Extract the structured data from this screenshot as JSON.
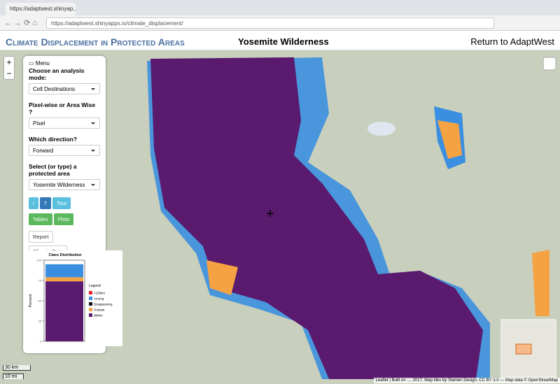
{
  "browser": {
    "tab_title": "https://adaptwest.shinyap...",
    "url": "https://adaptwest.shinyapps.io/climate_displacement/"
  },
  "header": {
    "title": "Climate Displacement in Protected Areas",
    "area": "Yosemite Wilderness",
    "link": "Return to AdaptWest"
  },
  "map": {
    "zoom_in": "+",
    "zoom_out": "−",
    "scale_km": "30 km",
    "scale_mi": "10 mi",
    "attribution": "Leaflet | Built on ..., 2017, Map tiles by Stamen Design, CC BY 3.0 — Map data © OpenStreetMap"
  },
  "menu": {
    "title": "Menu",
    "mode_label": "Choose an analysis mode:",
    "mode_value": "Cell Destinations",
    "wise_label": "Pixel-wise or Area Wise ?",
    "wise_value": "Pixel",
    "direction_label": "Which direction?",
    "direction_value": "Forward",
    "area_label": "Select (or type) a protected area",
    "area_value": "Yosemite Wilderness",
    "btn_info": "i",
    "btn_help": "?",
    "btn_tour": "Tour",
    "btn_tables": "Tables",
    "btn_plots": "Plots",
    "btn_report": "Report",
    "btn_climate": "Climate Data"
  },
  "chart_data": {
    "type": "stacked-bar",
    "title": "Class Distribution",
    "ylabel": "Percent",
    "legend_title": "Legend",
    "categories": [
      null
    ],
    "series": [
      {
        "name": "<100km",
        "color": "#e8202a",
        "values": [
          0
        ]
      },
      {
        "name": "Among",
        "color": "#3b8fe0",
        "values": [
          16
        ]
      },
      {
        "name": "Disappearing",
        "color": "#111111",
        "values": [
          0
        ]
      },
      {
        "name": "Outside",
        "color": "#f5a243",
        "values": [
          5
        ]
      },
      {
        "name": "Within",
        "color": "#5a1a6e",
        "values": [
          74
        ]
      }
    ],
    "ylim": [
      0,
      100
    ],
    "yticks": [
      0,
      25,
      50,
      75,
      100
    ]
  }
}
